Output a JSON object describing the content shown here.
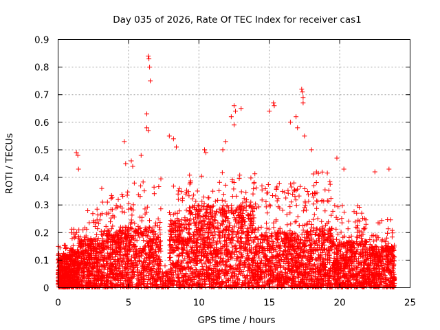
{
  "chart_data": {
    "type": "scatter",
    "title": "Day 035 of 2026, Rate Of TEC Index for receiver cas1",
    "xlabel": "GPS time / hours",
    "ylabel": "ROTI / TECUs",
    "xlim": [
      0,
      25
    ],
    "ylim": [
      0,
      0.9
    ],
    "x_ticks": [
      "0",
      "5",
      "10",
      "15",
      "20",
      "25"
    ],
    "y_ticks": [
      "0",
      "0.1",
      "0.2",
      "0.3",
      "0.4",
      "0.5",
      "0.6",
      "0.7",
      "0.8",
      "0.9"
    ],
    "grid": true,
    "marker": "+",
    "point_color": "#ff0000",
    "series": [
      {
        "name": "ROTI",
        "density_profile": [
          {
            "x_range": [
              0.0,
              0.8
            ],
            "typical_max": 0.16,
            "dense_max": 0.12,
            "count": 320
          },
          {
            "x_range": [
              0.8,
              1.5
            ],
            "typical_max": 0.22,
            "dense_max": 0.14,
            "count": 260
          },
          {
            "x_range": [
              1.5,
              3.0
            ],
            "typical_max": 0.3,
            "dense_max": 0.18,
            "count": 380
          },
          {
            "x_range": [
              3.0,
              5.0
            ],
            "typical_max": 0.35,
            "dense_max": 0.22,
            "count": 480
          },
          {
            "x_range": [
              5.0,
              7.3
            ],
            "typical_max": 0.4,
            "dense_max": 0.22,
            "count": 460
          },
          {
            "x_range": [
              7.3,
              7.9
            ],
            "typical_max": 0.1,
            "dense_max": 0.06,
            "count": 50
          },
          {
            "x_range": [
              7.9,
              9.3
            ],
            "typical_max": 0.38,
            "dense_max": 0.25,
            "count": 320
          },
          {
            "x_range": [
              9.3,
              14.0
            ],
            "typical_max": 0.42,
            "dense_max": 0.3,
            "count": 1100
          },
          {
            "x_range": [
              14.0,
              17.6
            ],
            "typical_max": 0.38,
            "dense_max": 0.2,
            "count": 780
          },
          {
            "x_range": [
              17.6,
              19.5
            ],
            "typical_max": 0.42,
            "dense_max": 0.22,
            "count": 440
          },
          {
            "x_range": [
              19.5,
              22.0
            ],
            "typical_max": 0.3,
            "dense_max": 0.17,
            "count": 560
          },
          {
            "x_range": [
              22.0,
              23.9
            ],
            "typical_max": 0.25,
            "dense_max": 0.15,
            "count": 420
          }
        ],
        "peaks": [
          {
            "x": 1.3,
            "y": 0.49
          },
          {
            "x": 1.4,
            "y": 0.48
          },
          {
            "x": 1.45,
            "y": 0.43
          },
          {
            "x": 3.1,
            "y": 0.36
          },
          {
            "x": 4.7,
            "y": 0.53
          },
          {
            "x": 4.8,
            "y": 0.45
          },
          {
            "x": 5.2,
            "y": 0.46
          },
          {
            "x": 5.3,
            "y": 0.44
          },
          {
            "x": 5.9,
            "y": 0.48
          },
          {
            "x": 6.3,
            "y": 0.63
          },
          {
            "x": 6.4,
            "y": 0.84
          },
          {
            "x": 6.45,
            "y": 0.83
          },
          {
            "x": 6.5,
            "y": 0.8
          },
          {
            "x": 6.55,
            "y": 0.75
          },
          {
            "x": 6.4,
            "y": 0.57
          },
          {
            "x": 6.3,
            "y": 0.58
          },
          {
            "x": 7.9,
            "y": 0.55
          },
          {
            "x": 8.2,
            "y": 0.54
          },
          {
            "x": 8.4,
            "y": 0.51
          },
          {
            "x": 10.4,
            "y": 0.5
          },
          {
            "x": 10.5,
            "y": 0.49
          },
          {
            "x": 11.7,
            "y": 0.5
          },
          {
            "x": 11.9,
            "y": 0.53
          },
          {
            "x": 12.3,
            "y": 0.62
          },
          {
            "x": 12.5,
            "y": 0.66
          },
          {
            "x": 12.6,
            "y": 0.64
          },
          {
            "x": 12.5,
            "y": 0.59
          },
          {
            "x": 13.0,
            "y": 0.65
          },
          {
            "x": 15.0,
            "y": 0.64
          },
          {
            "x": 15.3,
            "y": 0.67
          },
          {
            "x": 15.35,
            "y": 0.66
          },
          {
            "x": 16.5,
            "y": 0.6
          },
          {
            "x": 16.9,
            "y": 0.62
          },
          {
            "x": 17.0,
            "y": 0.58
          },
          {
            "x": 17.3,
            "y": 0.72
          },
          {
            "x": 17.35,
            "y": 0.71
          },
          {
            "x": 17.4,
            "y": 0.69
          },
          {
            "x": 17.4,
            "y": 0.67
          },
          {
            "x": 17.5,
            "y": 0.55
          },
          {
            "x": 18.0,
            "y": 0.5
          },
          {
            "x": 19.8,
            "y": 0.47
          },
          {
            "x": 20.3,
            "y": 0.43
          },
          {
            "x": 22.5,
            "y": 0.42
          },
          {
            "x": 23.5,
            "y": 0.43
          }
        ]
      }
    ]
  }
}
